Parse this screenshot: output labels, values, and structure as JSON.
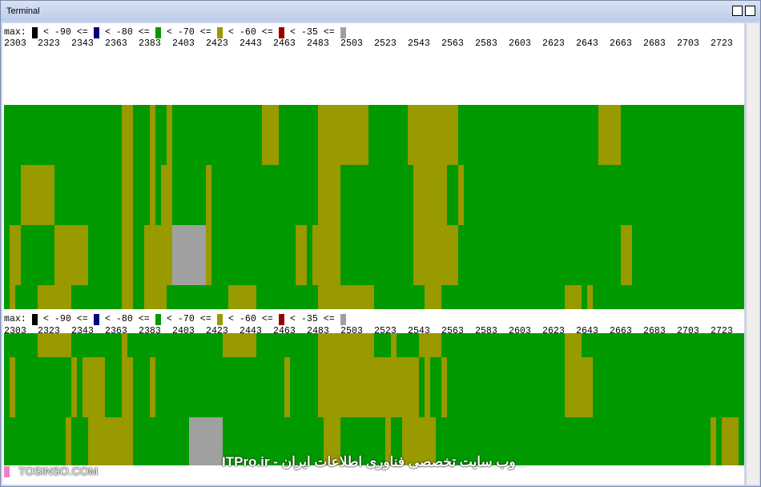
{
  "window": {
    "title": "Terminal"
  },
  "legend": {
    "label": "max:",
    "colors": [
      "#000000",
      "#000080",
      "#009900",
      "#999900",
      "#990000",
      "#a0a0a0"
    ],
    "thresholds": [
      "< -90 <=",
      "< -80 <=",
      "< -70 <=",
      "< -60 <=",
      "< -35 <="
    ]
  },
  "frequencies": [
    2303,
    2323,
    2343,
    2363,
    2383,
    2403,
    2423,
    2443,
    2463,
    2483,
    2503,
    2523,
    2543,
    2563,
    2583,
    2603,
    2623,
    2643,
    2663,
    2683,
    2703,
    2723
  ],
  "panels": [
    {
      "rows": [
        [
          [
            2,
            21
          ],
          [
            3,
            2
          ],
          [
            2,
            3
          ],
          [
            3,
            1
          ],
          [
            2,
            2
          ],
          [
            3,
            1
          ],
          [
            2,
            16
          ],
          [
            3,
            3
          ],
          [
            2,
            7
          ],
          [
            3,
            9
          ],
          [
            2,
            7
          ],
          [
            3,
            9
          ],
          [
            2,
            25
          ],
          [
            3,
            4
          ],
          [
            2,
            22
          ]
        ],
        [
          [
            2,
            3
          ],
          [
            3,
            6
          ],
          [
            2,
            12
          ],
          [
            3,
            2
          ],
          [
            2,
            3
          ],
          [
            3,
            1
          ],
          [
            2,
            1
          ],
          [
            3,
            2
          ],
          [
            2,
            6
          ],
          [
            3,
            1
          ],
          [
            2,
            19
          ],
          [
            3,
            4
          ],
          [
            2,
            13
          ],
          [
            3,
            6
          ],
          [
            2,
            2
          ],
          [
            3,
            1
          ],
          [
            2,
            50
          ]
        ],
        [
          [
            2,
            1
          ],
          [
            3,
            2
          ],
          [
            2,
            6
          ],
          [
            3,
            6
          ],
          [
            2,
            6
          ],
          [
            3,
            2
          ],
          [
            2,
            2
          ],
          [
            3,
            5
          ],
          [
            5,
            6
          ],
          [
            3,
            1
          ],
          [
            2,
            15
          ],
          [
            3,
            2
          ],
          [
            2,
            1
          ],
          [
            3,
            5
          ],
          [
            2,
            13
          ],
          [
            3,
            8
          ],
          [
            2,
            29
          ],
          [
            3,
            2
          ],
          [
            2,
            20
          ]
        ],
        [
          [
            2,
            1
          ],
          [
            3,
            1
          ],
          [
            2,
            4
          ],
          [
            3,
            6
          ],
          [
            2,
            9
          ],
          [
            3,
            2
          ],
          [
            2,
            2
          ],
          [
            3,
            4
          ],
          [
            2,
            11
          ],
          [
            3,
            5
          ],
          [
            2,
            11
          ],
          [
            3,
            10
          ],
          [
            2,
            9
          ],
          [
            3,
            3
          ],
          [
            2,
            22
          ],
          [
            3,
            3
          ],
          [
            2,
            1
          ],
          [
            3,
            1
          ],
          [
            2,
            27
          ]
        ]
      ]
    },
    {
      "rows": [
        [
          [
            2,
            6
          ],
          [
            3,
            6
          ],
          [
            2,
            9
          ],
          [
            3,
            1
          ],
          [
            2,
            17
          ],
          [
            3,
            6
          ],
          [
            2,
            11
          ],
          [
            3,
            10
          ],
          [
            2,
            3
          ],
          [
            3,
            1
          ],
          [
            2,
            4
          ],
          [
            3,
            4
          ],
          [
            2,
            22
          ],
          [
            3,
            3
          ],
          [
            2,
            29
          ]
        ],
        [
          [
            2,
            1
          ],
          [
            3,
            1
          ],
          [
            2,
            10
          ],
          [
            3,
            1
          ],
          [
            2,
            1
          ],
          [
            3,
            4
          ],
          [
            2,
            3
          ],
          [
            3,
            2
          ],
          [
            2,
            3
          ],
          [
            3,
            1
          ],
          [
            2,
            23
          ],
          [
            3,
            1
          ],
          [
            2,
            5
          ],
          [
            3,
            18
          ],
          [
            2,
            1
          ],
          [
            3,
            1
          ],
          [
            2,
            2
          ],
          [
            3,
            1
          ],
          [
            2,
            21
          ],
          [
            3,
            5
          ],
          [
            2,
            27
          ]
        ],
        [
          [
            2,
            11
          ],
          [
            3,
            1
          ],
          [
            2,
            3
          ],
          [
            3,
            8
          ],
          [
            2,
            10
          ],
          [
            5,
            6
          ],
          [
            2,
            18
          ],
          [
            3,
            3
          ],
          [
            2,
            8
          ],
          [
            3,
            1
          ],
          [
            2,
            2
          ],
          [
            3,
            6
          ],
          [
            2,
            49
          ],
          [
            3,
            1
          ],
          [
            2,
            1
          ],
          [
            3,
            3
          ],
          [
            2,
            1
          ]
        ]
      ]
    }
  ],
  "watermark": {
    "left": "TOSINSO.COM",
    "right": "وب سایت تخصصی فناوری اطلاعات ایران - ITPro.ir"
  }
}
